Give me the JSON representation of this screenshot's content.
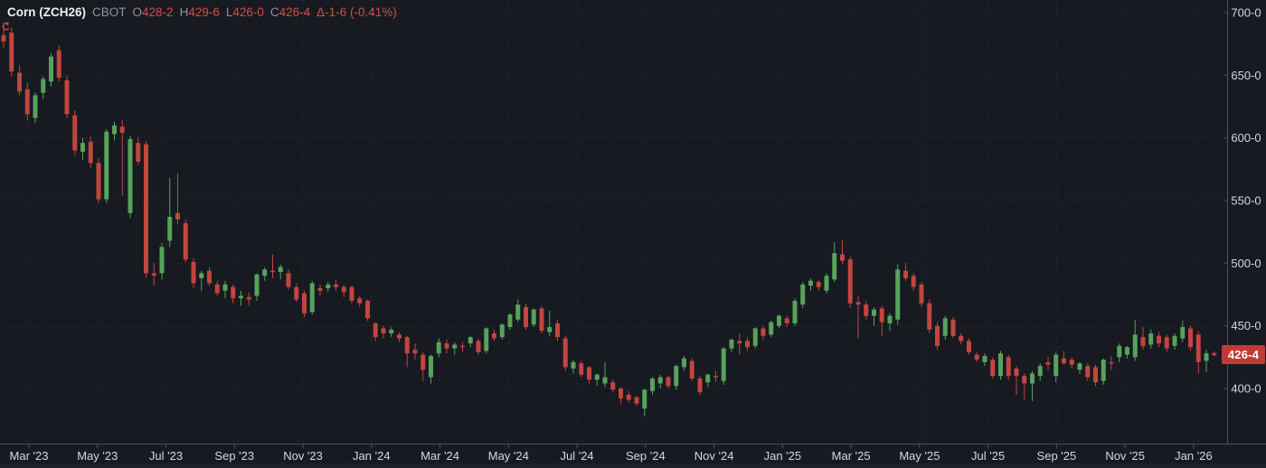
{
  "header": {
    "symbol": "Corn (ZCH26)",
    "exchange": "CBOT",
    "ohlc": [
      {
        "label": "O",
        "value": "428-2"
      },
      {
        "label": "H",
        "value": "429-6"
      },
      {
        "label": "L",
        "value": "426-0"
      },
      {
        "label": "C",
        "value": "426-4"
      }
    ],
    "change": "Δ-1-6 (-0.41%)"
  },
  "colors": {
    "background": "#171a20",
    "up": "#58a25c",
    "down": "#c2453f",
    "grid": "#2c3039",
    "axis_line": "#4b505b",
    "axis_text": "#d6d9de",
    "badge_bg": "#c03a37",
    "badge_text": "#ffffff",
    "title_text": "#eef0f3",
    "muted_text": "#8e939d",
    "value_text": "#d64c45",
    "bottom_strip": "#1c202a",
    "reload_icon": "#c2453f"
  },
  "price_axis": {
    "last_price_badge": {
      "text": "426-4",
      "price": 426.5
    }
  },
  "chart_data": {
    "type": "candlestick",
    "title": "Corn (ZCH26) CBOT",
    "interval": "weekly",
    "ylim": [
      378,
      700
    ],
    "legend_position": "none",
    "grid": "dotted",
    "y_ticks": [
      {
        "label": "700-0",
        "value": 700
      },
      {
        "label": "650-0",
        "value": 650
      },
      {
        "label": "600-0",
        "value": 600
      },
      {
        "label": "550-0",
        "value": 550
      },
      {
        "label": "500-0",
        "value": 500
      },
      {
        "label": "450-0",
        "value": 450
      },
      {
        "label": "400-0",
        "value": 400
      }
    ],
    "x_ticks": [
      "Mar '23",
      "May '23",
      "Jul '23",
      "Sep '23",
      "Nov '23",
      "Jan '24",
      "Mar '24",
      "May '24",
      "Jul '24",
      "Sep '24",
      "Nov '24",
      "Jan '25",
      "Mar '25",
      "May '25",
      "Jul '25",
      "Sep '25",
      "Nov '25",
      "Jan '26"
    ],
    "values_format": "[open, high, low, close] in cents per bushel",
    "candles": [
      [
        682,
        692,
        672,
        677
      ],
      [
        684,
        688,
        649,
        653
      ],
      [
        652,
        658,
        634,
        637
      ],
      [
        639,
        644,
        614,
        619
      ],
      [
        616,
        636,
        612,
        634
      ],
      [
        636,
        649,
        631,
        647
      ],
      [
        645,
        668,
        641,
        665
      ],
      [
        670,
        674,
        645,
        648
      ],
      [
        646,
        650,
        616,
        619
      ],
      [
        618,
        622,
        586,
        590
      ],
      [
        589,
        600,
        582,
        596
      ],
      [
        597,
        601,
        576,
        580
      ],
      [
        580,
        584,
        548,
        551
      ],
      [
        551,
        607,
        548,
        605
      ],
      [
        603,
        613,
        598,
        610
      ],
      [
        609,
        614,
        554,
        604
      ],
      [
        540,
        602,
        536,
        599
      ],
      [
        596,
        601,
        578,
        581
      ],
      [
        595,
        598,
        488,
        492
      ],
      [
        492,
        500,
        482,
        490
      ],
      [
        492,
        516,
        487,
        513
      ],
      [
        518,
        568,
        513,
        537
      ],
      [
        540,
        572,
        531,
        535
      ],
      [
        532,
        535,
        501,
        503
      ],
      [
        501,
        504,
        480,
        484
      ],
      [
        488,
        494,
        478,
        492
      ],
      [
        494,
        497,
        482,
        484
      ],
      [
        483,
        486,
        474,
        476
      ],
      [
        478,
        486,
        472,
        483
      ],
      [
        481,
        483,
        468,
        472
      ],
      [
        472,
        478,
        466,
        474
      ],
      [
        473,
        477,
        466,
        471
      ],
      [
        474,
        492,
        470,
        491
      ],
      [
        490,
        497,
        486,
        495
      ],
      [
        494,
        507,
        488,
        493
      ],
      [
        493,
        499,
        487,
        497
      ],
      [
        492,
        495,
        479,
        481
      ],
      [
        481,
        484,
        469,
        471
      ],
      [
        476,
        478,
        457,
        460
      ],
      [
        461,
        486,
        459,
        484
      ],
      [
        480,
        483,
        474,
        478
      ],
      [
        480,
        485,
        477,
        483
      ],
      [
        483,
        487,
        478,
        481
      ],
      [
        481,
        483,
        473,
        477
      ],
      [
        481,
        482,
        468,
        470
      ],
      [
        472,
        474,
        465,
        468
      ],
      [
        470,
        471,
        454,
        456
      ],
      [
        452,
        453,
        438,
        441
      ],
      [
        448,
        450,
        440,
        444
      ],
      [
        444,
        449,
        441,
        447
      ],
      [
        443,
        445,
        437,
        440
      ],
      [
        441,
        442,
        417,
        428
      ],
      [
        431,
        436,
        423,
        428
      ],
      [
        427,
        429,
        406,
        415
      ],
      [
        409,
        427,
        404,
        426
      ],
      [
        428,
        440,
        425,
        437
      ],
      [
        436,
        439,
        428,
        432
      ],
      [
        432,
        437,
        427,
        435
      ],
      [
        434,
        437,
        429,
        433
      ],
      [
        436,
        442,
        433,
        441
      ],
      [
        438,
        440,
        427,
        429
      ],
      [
        430,
        449,
        428,
        448
      ],
      [
        444,
        447,
        438,
        440
      ],
      [
        441,
        452,
        439,
        451
      ],
      [
        449,
        460,
        447,
        459
      ],
      [
        455,
        471,
        453,
        467
      ],
      [
        465,
        468,
        447,
        449
      ],
      [
        451,
        464,
        449,
        463
      ],
      [
        464,
        466,
        444,
        446
      ],
      [
        445,
        462,
        442,
        449
      ],
      [
        452,
        455,
        438,
        441
      ],
      [
        440,
        442,
        414,
        417
      ],
      [
        416,
        423,
        412,
        421
      ],
      [
        420,
        422,
        409,
        411
      ],
      [
        417,
        418,
        404,
        407
      ],
      [
        407,
        412,
        402,
        411
      ],
      [
        404,
        421,
        401,
        409
      ],
      [
        405,
        407,
        397,
        399
      ],
      [
        400,
        401,
        388,
        392
      ],
      [
        395,
        398,
        389,
        391
      ],
      [
        393,
        394,
        386,
        388
      ],
      [
        384,
        400,
        378,
        399
      ],
      [
        398,
        409,
        395,
        408
      ],
      [
        404,
        411,
        400,
        409
      ],
      [
        409,
        410,
        400,
        402
      ],
      [
        402,
        419,
        399,
        418
      ],
      [
        417,
        426,
        414,
        424
      ],
      [
        422,
        424,
        406,
        408
      ],
      [
        408,
        410,
        395,
        397
      ],
      [
        405,
        412,
        401,
        411
      ],
      [
        410,
        414,
        405,
        409
      ],
      [
        406,
        433,
        403,
        432
      ],
      [
        432,
        440,
        429,
        439
      ],
      [
        438,
        444,
        427,
        436
      ],
      [
        438,
        441,
        430,
        433
      ],
      [
        434,
        449,
        432,
        448
      ],
      [
        448,
        450,
        439,
        442
      ],
      [
        443,
        454,
        441,
        453
      ],
      [
        450,
        459,
        448,
        458
      ],
      [
        456,
        458,
        449,
        452
      ],
      [
        452,
        472,
        450,
        470
      ],
      [
        467,
        485,
        464,
        483
      ],
      [
        482,
        488,
        478,
        486
      ],
      [
        485,
        487,
        478,
        481
      ],
      [
        478,
        492,
        476,
        490
      ],
      [
        487,
        517,
        485,
        508
      ],
      [
        507,
        518,
        499,
        502
      ],
      [
        503,
        505,
        464,
        468
      ],
      [
        469,
        474,
        440,
        467
      ],
      [
        467,
        470,
        455,
        458
      ],
      [
        458,
        465,
        450,
        463
      ],
      [
        464,
        466,
        442,
        453
      ],
      [
        452,
        460,
        446,
        458
      ],
      [
        455,
        499,
        451,
        495
      ],
      [
        494,
        500,
        486,
        488
      ],
      [
        490,
        492,
        478,
        481
      ],
      [
        483,
        485,
        465,
        468
      ],
      [
        468,
        471,
        444,
        447
      ],
      [
        450,
        453,
        431,
        434
      ],
      [
        442,
        458,
        439,
        456
      ],
      [
        455,
        457,
        440,
        442
      ],
      [
        442,
        444,
        435,
        438
      ],
      [
        438,
        440,
        427,
        429
      ],
      [
        427,
        429,
        421,
        423
      ],
      [
        421,
        428,
        418,
        426
      ],
      [
        423,
        425,
        408,
        410
      ],
      [
        410,
        430,
        407,
        428
      ],
      [
        425,
        427,
        407,
        410
      ],
      [
        416,
        418,
        395,
        410
      ],
      [
        410,
        412,
        391,
        404
      ],
      [
        404,
        414,
        390,
        412
      ],
      [
        410,
        420,
        406,
        418
      ],
      [
        421,
        425,
        415,
        419
      ],
      [
        410,
        429,
        405,
        427
      ],
      [
        424,
        430,
        419,
        420
      ],
      [
        423,
        425,
        416,
        419
      ],
      [
        415,
        421,
        412,
        420
      ],
      [
        418,
        420,
        406,
        409
      ],
      [
        417,
        419,
        402,
        405
      ],
      [
        406,
        424,
        403,
        423
      ],
      [
        421,
        426,
        415,
        420
      ],
      [
        425,
        436,
        421,
        434
      ],
      [
        427,
        434,
        424,
        433
      ],
      [
        425,
        455,
        422,
        443
      ],
      [
        441,
        449,
        431,
        434
      ],
      [
        435,
        447,
        432,
        444
      ],
      [
        442,
        445,
        433,
        436
      ],
      [
        441,
        443,
        429,
        432
      ],
      [
        434,
        444,
        431,
        442
      ],
      [
        440,
        454,
        437,
        449
      ],
      [
        448,
        450,
        430,
        433
      ],
      [
        443,
        446,
        412,
        421
      ],
      [
        422,
        431,
        413,
        428
      ],
      [
        428.25,
        429.75,
        426,
        426.5
      ]
    ]
  }
}
